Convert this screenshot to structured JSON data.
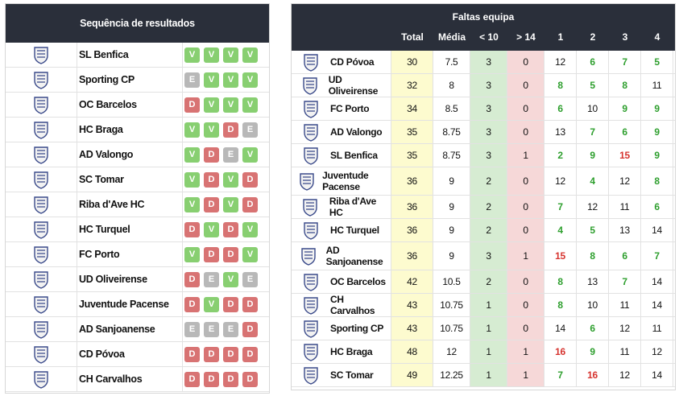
{
  "left": {
    "title": "Sequência de resultados",
    "rows": [
      {
        "team": "SL Benfica",
        "logo": "benfica-crest-icon",
        "results": [
          "V",
          "V",
          "V",
          "V"
        ]
      },
      {
        "team": "Sporting CP",
        "logo": "sporting-crest-icon",
        "results": [
          "E",
          "V",
          "V",
          "V"
        ]
      },
      {
        "team": "OC Barcelos",
        "logo": "barcelos-crest-icon",
        "results": [
          "D",
          "V",
          "V",
          "V"
        ]
      },
      {
        "team": "HC Braga",
        "logo": "braga-crest-icon",
        "results": [
          "V",
          "V",
          "D",
          "E"
        ]
      },
      {
        "team": "AD Valongo",
        "logo": "valongo-crest-icon",
        "results": [
          "V",
          "D",
          "E",
          "V"
        ]
      },
      {
        "team": "SC Tomar",
        "logo": "tomar-crest-icon",
        "results": [
          "V",
          "D",
          "V",
          "D"
        ]
      },
      {
        "team": "Riba d'Ave HC",
        "logo": "riba-dave-crest-icon",
        "results": [
          "V",
          "D",
          "V",
          "D"
        ]
      },
      {
        "team": "HC Turquel",
        "logo": "turquel-crest-icon",
        "results": [
          "D",
          "V",
          "D",
          "V"
        ]
      },
      {
        "team": "FC Porto",
        "logo": "porto-crest-icon",
        "results": [
          "V",
          "D",
          "D",
          "V"
        ]
      },
      {
        "team": "UD Oliveirense",
        "logo": "oliveirense-crest-icon",
        "results": [
          "D",
          "E",
          "V",
          "E"
        ]
      },
      {
        "team": "Juventude Pacense",
        "logo": "pacense-crest-icon",
        "results": [
          "D",
          "V",
          "D",
          "D"
        ]
      },
      {
        "team": "AD Sanjoanense",
        "logo": "sanjoanense-crest-icon",
        "results": [
          "E",
          "E",
          "E",
          "D"
        ]
      },
      {
        "team": "CD Póvoa",
        "logo": "povoa-crest-icon",
        "results": [
          "D",
          "D",
          "D",
          "D"
        ]
      },
      {
        "team": "CH Carvalhos",
        "logo": "carvalhos-crest-icon",
        "results": [
          "D",
          "D",
          "D",
          "D"
        ]
      }
    ]
  },
  "right": {
    "title": "Faltas equipa",
    "columns": [
      "Total",
      "Média",
      "< 10",
      "> 14",
      "1",
      "2",
      "3",
      "4"
    ],
    "rows": [
      {
        "team": "CD Póvoa",
        "logo": "povoa-crest-icon",
        "total": "30",
        "media": "7.5",
        "lt10": "3",
        "gt14": "0",
        "q": [
          {
            "v": "12",
            "c": "black"
          },
          {
            "v": "6",
            "c": "green"
          },
          {
            "v": "7",
            "c": "green"
          },
          {
            "v": "5",
            "c": "green"
          }
        ]
      },
      {
        "team": "UD Oliveirense",
        "logo": "oliveirense-crest-icon",
        "total": "32",
        "media": "8",
        "lt10": "3",
        "gt14": "0",
        "q": [
          {
            "v": "8",
            "c": "green"
          },
          {
            "v": "5",
            "c": "green"
          },
          {
            "v": "8",
            "c": "green"
          },
          {
            "v": "11",
            "c": "black"
          }
        ]
      },
      {
        "team": "FC Porto",
        "logo": "porto-crest-icon",
        "total": "34",
        "media": "8.5",
        "lt10": "3",
        "gt14": "0",
        "q": [
          {
            "v": "6",
            "c": "green"
          },
          {
            "v": "10",
            "c": "black"
          },
          {
            "v": "9",
            "c": "green"
          },
          {
            "v": "9",
            "c": "green"
          }
        ]
      },
      {
        "team": "AD Valongo",
        "logo": "valongo-crest-icon",
        "total": "35",
        "media": "8.75",
        "lt10": "3",
        "gt14": "0",
        "q": [
          {
            "v": "13",
            "c": "black"
          },
          {
            "v": "7",
            "c": "green"
          },
          {
            "v": "6",
            "c": "green"
          },
          {
            "v": "9",
            "c": "green"
          }
        ]
      },
      {
        "team": "SL Benfica",
        "logo": "benfica-crest-icon",
        "total": "35",
        "media": "8.75",
        "lt10": "3",
        "gt14": "1",
        "q": [
          {
            "v": "2",
            "c": "green"
          },
          {
            "v": "9",
            "c": "green"
          },
          {
            "v": "15",
            "c": "red"
          },
          {
            "v": "9",
            "c": "green"
          }
        ]
      },
      {
        "team": "Juventude Pacense",
        "logo": "pacense-crest-icon",
        "total": "36",
        "media": "9",
        "lt10": "2",
        "gt14": "0",
        "q": [
          {
            "v": "12",
            "c": "black"
          },
          {
            "v": "4",
            "c": "green"
          },
          {
            "v": "12",
            "c": "black"
          },
          {
            "v": "8",
            "c": "green"
          }
        ]
      },
      {
        "team": "Riba d'Ave HC",
        "logo": "riba-dave-crest-icon",
        "total": "36",
        "media": "9",
        "lt10": "2",
        "gt14": "0",
        "q": [
          {
            "v": "7",
            "c": "green"
          },
          {
            "v": "12",
            "c": "black"
          },
          {
            "v": "11",
            "c": "black"
          },
          {
            "v": "6",
            "c": "green"
          }
        ]
      },
      {
        "team": "HC Turquel",
        "logo": "turquel-crest-icon",
        "total": "36",
        "media": "9",
        "lt10": "2",
        "gt14": "0",
        "q": [
          {
            "v": "4",
            "c": "green"
          },
          {
            "v": "5",
            "c": "green"
          },
          {
            "v": "13",
            "c": "black"
          },
          {
            "v": "14",
            "c": "black"
          }
        ]
      },
      {
        "team": "AD Sanjoanense",
        "logo": "sanjoanense-crest-icon",
        "total": "36",
        "media": "9",
        "lt10": "3",
        "gt14": "1",
        "q": [
          {
            "v": "15",
            "c": "red"
          },
          {
            "v": "8",
            "c": "green"
          },
          {
            "v": "6",
            "c": "green"
          },
          {
            "v": "7",
            "c": "green"
          }
        ]
      },
      {
        "team": "OC Barcelos",
        "logo": "barcelos-crest-icon",
        "total": "42",
        "media": "10.5",
        "lt10": "2",
        "gt14": "0",
        "q": [
          {
            "v": "8",
            "c": "green"
          },
          {
            "v": "13",
            "c": "black"
          },
          {
            "v": "7",
            "c": "green"
          },
          {
            "v": "14",
            "c": "black"
          }
        ]
      },
      {
        "team": "CH Carvalhos",
        "logo": "carvalhos-crest-icon",
        "total": "43",
        "media": "10.75",
        "lt10": "1",
        "gt14": "0",
        "q": [
          {
            "v": "8",
            "c": "green"
          },
          {
            "v": "10",
            "c": "black"
          },
          {
            "v": "11",
            "c": "black"
          },
          {
            "v": "14",
            "c": "black"
          }
        ]
      },
      {
        "team": "Sporting CP",
        "logo": "sporting-crest-icon",
        "total": "43",
        "media": "10.75",
        "lt10": "1",
        "gt14": "0",
        "q": [
          {
            "v": "14",
            "c": "black"
          },
          {
            "v": "6",
            "c": "green"
          },
          {
            "v": "12",
            "c": "black"
          },
          {
            "v": "11",
            "c": "black"
          }
        ]
      },
      {
        "team": "HC Braga",
        "logo": "braga-crest-icon",
        "total": "48",
        "media": "12",
        "lt10": "1",
        "gt14": "1",
        "q": [
          {
            "v": "16",
            "c": "red"
          },
          {
            "v": "9",
            "c": "green"
          },
          {
            "v": "11",
            "c": "black"
          },
          {
            "v": "12",
            "c": "black"
          }
        ]
      },
      {
        "team": "SC Tomar",
        "logo": "tomar-crest-icon",
        "total": "49",
        "media": "12.25",
        "lt10": "1",
        "gt14": "1",
        "q": [
          {
            "v": "7",
            "c": "green"
          },
          {
            "v": "16",
            "c": "red"
          },
          {
            "v": "12",
            "c": "black"
          },
          {
            "v": "14",
            "c": "black"
          }
        ]
      }
    ]
  },
  "colors": {
    "header_bg": "#2a2f3a",
    "win": "#88cf71",
    "loss": "#d87373",
    "draw": "#b8b8b8",
    "total_bg": "#fdfbcf",
    "lt10_bg": "#d6ecd2",
    "gt14_bg": "#f6d8d8",
    "text_green": "#2e9f2e",
    "text_red": "#d6342f"
  }
}
